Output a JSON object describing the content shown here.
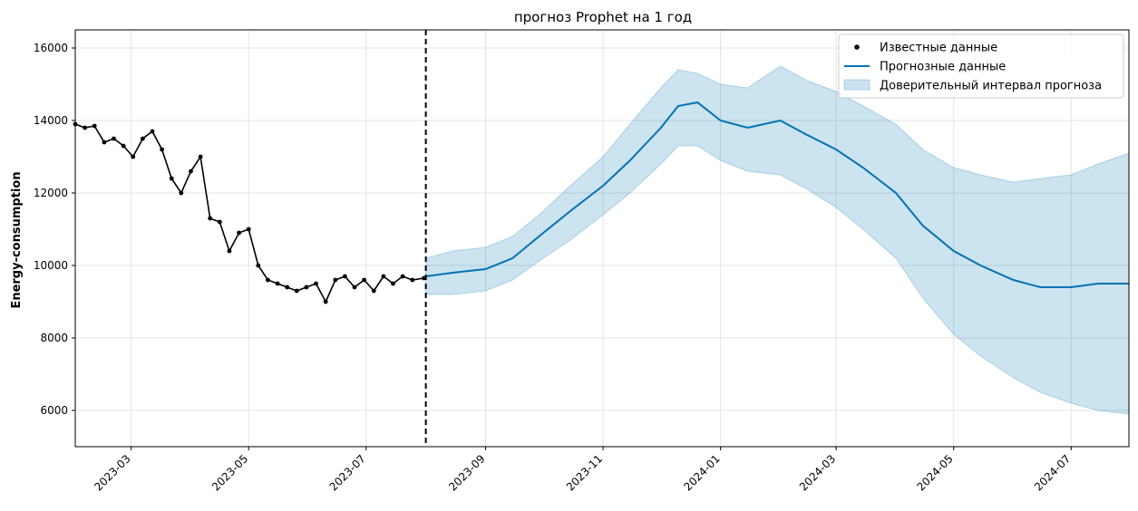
{
  "chart_data": {
    "type": "line",
    "title": "прогноз Prophet на 1 год",
    "xlabel": "",
    "ylabel": "Energy-consumption",
    "xlim": [
      "2023-01-31",
      "2024-07-31"
    ],
    "ylim": [
      5000,
      16500
    ],
    "grid": true,
    "legend_position": "top-right",
    "x_ticks": [
      "2023-03",
      "2023-05",
      "2023-07",
      "2023-09",
      "2023-11",
      "2024-01",
      "2024-03",
      "2024-05",
      "2024-07"
    ],
    "x_tick_dates": [
      "2023-03-01",
      "2023-05-01",
      "2023-07-01",
      "2023-09-01",
      "2023-11-01",
      "2024-01-01",
      "2024-03-01",
      "2024-05-01",
      "2024-07-01"
    ],
    "y_ticks": [
      6000,
      8000,
      10000,
      12000,
      14000,
      16000
    ],
    "forecast_start": "2023-08-01",
    "legend": [
      {
        "label": "Известные данные",
        "kind": "marker",
        "color": "#000000"
      },
      {
        "label": "Прогнозные данные",
        "kind": "line",
        "color": "#0072B2"
      },
      {
        "label": "Доверительный интервал прогноза",
        "kind": "band",
        "color": "#0072B2"
      }
    ],
    "series": [
      {
        "name": "Известные данные",
        "color": "#000000",
        "x": [
          "2023-01-31",
          "2023-02-05",
          "2023-02-10",
          "2023-02-15",
          "2023-02-20",
          "2023-02-25",
          "2023-03-02",
          "2023-03-07",
          "2023-03-12",
          "2023-03-17",
          "2023-03-22",
          "2023-03-27",
          "2023-04-01",
          "2023-04-06",
          "2023-04-11",
          "2023-04-16",
          "2023-04-21",
          "2023-04-26",
          "2023-05-01",
          "2023-05-06",
          "2023-05-11",
          "2023-05-16",
          "2023-05-21",
          "2023-05-26",
          "2023-05-31",
          "2023-06-05",
          "2023-06-10",
          "2023-06-15",
          "2023-06-20",
          "2023-06-25",
          "2023-06-30",
          "2023-07-05",
          "2023-07-10",
          "2023-07-15",
          "2023-07-20",
          "2023-07-25",
          "2023-07-31"
        ],
        "y": [
          13900,
          13800,
          13850,
          13400,
          13500,
          13300,
          13000,
          13500,
          13700,
          13200,
          12400,
          12000,
          12600,
          13000,
          11300,
          11200,
          10400,
          10900,
          11000,
          10000,
          9600,
          9500,
          9400,
          9300,
          9400,
          9500,
          9000,
          9600,
          9700,
          9400,
          9600,
          9300,
          9700,
          9500,
          9700,
          9600,
          9650
        ]
      },
      {
        "name": "Прогнозные данные",
        "color": "#0072B2",
        "x": [
          "2023-08-01",
          "2023-08-15",
          "2023-09-01",
          "2023-09-15",
          "2023-10-01",
          "2023-10-15",
          "2023-11-01",
          "2023-11-15",
          "2023-12-01",
          "2023-12-10",
          "2023-12-20",
          "2024-01-01",
          "2024-01-15",
          "2024-02-01",
          "2024-02-15",
          "2024-03-01",
          "2024-03-15",
          "2024-04-01",
          "2024-04-15",
          "2024-05-01",
          "2024-05-15",
          "2024-06-01",
          "2024-06-15",
          "2024-07-01",
          "2024-07-15",
          "2024-07-31"
        ],
        "y": [
          9700,
          9800,
          9900,
          10200,
          10900,
          11500,
          12200,
          12900,
          13800,
          14400,
          14500,
          14000,
          13800,
          14000,
          13600,
          13200,
          12700,
          12000,
          11100,
          10400,
          10000,
          9600,
          9400,
          9400,
          9500,
          9500
        ]
      },
      {
        "name": "Доверительный интервал прогноза",
        "color": "#0072B2",
        "x": [
          "2023-08-01",
          "2023-08-15",
          "2023-09-01",
          "2023-09-15",
          "2023-10-01",
          "2023-10-15",
          "2023-11-01",
          "2023-11-15",
          "2023-12-01",
          "2023-12-10",
          "2023-12-20",
          "2024-01-01",
          "2024-01-15",
          "2024-02-01",
          "2024-02-15",
          "2024-03-01",
          "2024-03-15",
          "2024-04-01",
          "2024-04-15",
          "2024-05-01",
          "2024-05-15",
          "2024-06-01",
          "2024-06-15",
          "2024-07-01",
          "2024-07-15",
          "2024-07-31"
        ],
        "y_upper": [
          10200,
          10400,
          10500,
          10800,
          11500,
          12200,
          13000,
          13900,
          14900,
          15400,
          15300,
          15000,
          14900,
          15500,
          15100,
          14800,
          14400,
          13900,
          13200,
          12700,
          12500,
          12300,
          12400,
          12500,
          12800,
          13100
        ],
        "y_lower": [
          9200,
          9200,
          9300,
          9600,
          10200,
          10700,
          11400,
          12000,
          12800,
          13300,
          13300,
          12900,
          12600,
          12500,
          12100,
          11600,
          11000,
          10200,
          9100,
          8100,
          7500,
          6900,
          6500,
          6200,
          6000,
          5900
        ]
      }
    ]
  }
}
